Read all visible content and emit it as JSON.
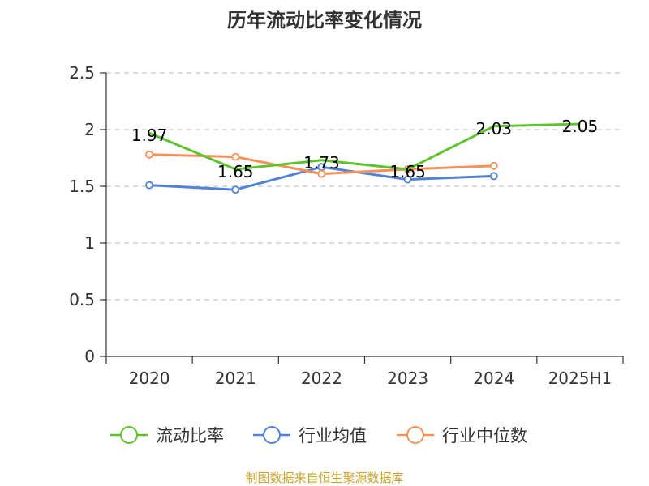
{
  "chart_data": {
    "type": "line",
    "title": "历年流动比率变化情况",
    "categories": [
      "2020",
      "2021",
      "2022",
      "2023",
      "2024",
      "2025H1"
    ],
    "ylim": [
      0,
      2.5
    ],
    "yticks": [
      "0",
      "0.5",
      "1",
      "1.5",
      "2",
      "2.5"
    ],
    "ytick_values": [
      0,
      0.5,
      1,
      1.5,
      2,
      2.5
    ],
    "grid": true,
    "legend_position": "bottom-center",
    "series": [
      {
        "name": "流动比率",
        "color": "#5fc32e",
        "values": [
          1.97,
          1.65,
          1.73,
          1.65,
          2.03,
          2.05
        ],
        "labels": [
          "1.97",
          "1.65",
          "1.73",
          "1.65",
          "2.03",
          "2.05"
        ]
      },
      {
        "name": "行业均值",
        "color": "#4f81d7",
        "values": [
          1.51,
          1.47,
          1.67,
          1.56,
          1.59,
          null
        ]
      },
      {
        "name": "行业中位数",
        "color": "#f5905a",
        "values": [
          1.78,
          1.76,
          1.61,
          1.65,
          1.68,
          null
        ]
      }
    ]
  },
  "source": {
    "text": "制图数据来自恒生聚源数据库",
    "color": "#c9a227"
  }
}
